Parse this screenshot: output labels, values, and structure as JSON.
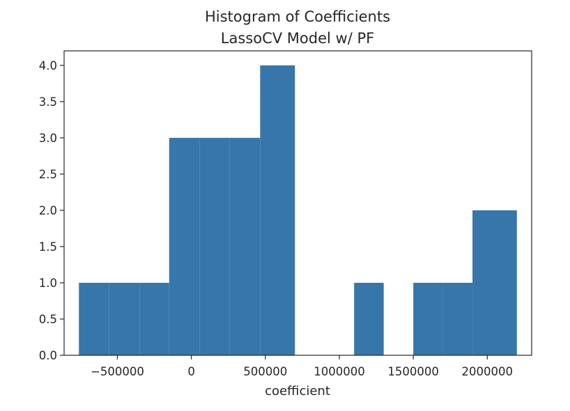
{
  "chart_data": {
    "type": "bar",
    "title": "Histogram of Coefficients",
    "subtitle": "LassoCV Model w/ PF",
    "xlabel": "coefficient",
    "ylabel": "",
    "bar_color": "#3776ab",
    "xlim": [
      -860000,
      2300000
    ],
    "ylim": [
      0,
      4.2
    ],
    "bins": [
      {
        "start": -760000,
        "end": -555000,
        "count": 1
      },
      {
        "start": -555000,
        "end": -350000,
        "count": 1
      },
      {
        "start": -350000,
        "end": -150000,
        "count": 1
      },
      {
        "start": -150000,
        "end": 55000,
        "count": 3
      },
      {
        "start": 55000,
        "end": 260000,
        "count": 3
      },
      {
        "start": 260000,
        "end": 465000,
        "count": 3
      },
      {
        "start": 465000,
        "end": 700000,
        "count": 4
      },
      {
        "start": 700000,
        "end": 900000,
        "count": 0
      },
      {
        "start": 900000,
        "end": 1100000,
        "count": 0
      },
      {
        "start": 1100000,
        "end": 1300000,
        "count": 1
      },
      {
        "start": 1300000,
        "end": 1500000,
        "count": 0
      },
      {
        "start": 1500000,
        "end": 1700000,
        "count": 1
      },
      {
        "start": 1700000,
        "end": 1900000,
        "count": 1
      },
      {
        "start": 1900000,
        "end": 2200000,
        "count": 2
      }
    ],
    "x_ticks": [
      {
        "value": -500000,
        "label": "−500000"
      },
      {
        "value": 0,
        "label": "0"
      },
      {
        "value": 500000,
        "label": "500000"
      },
      {
        "value": 1000000,
        "label": "1000000"
      },
      {
        "value": 1500000,
        "label": "1500000"
      },
      {
        "value": 2000000,
        "label": "2000000"
      }
    ],
    "y_ticks": [
      {
        "value": 0,
        "label": "0.0"
      },
      {
        "value": 0.5,
        "label": "0.5"
      },
      {
        "value": 1,
        "label": "1.0"
      },
      {
        "value": 1.5,
        "label": "1.5"
      },
      {
        "value": 2,
        "label": "2.0"
      },
      {
        "value": 2.5,
        "label": "2.5"
      },
      {
        "value": 3,
        "label": "3.0"
      },
      {
        "value": 3.5,
        "label": "3.5"
      },
      {
        "value": 4,
        "label": "4.0"
      }
    ],
    "grid": false,
    "legend": "none"
  }
}
